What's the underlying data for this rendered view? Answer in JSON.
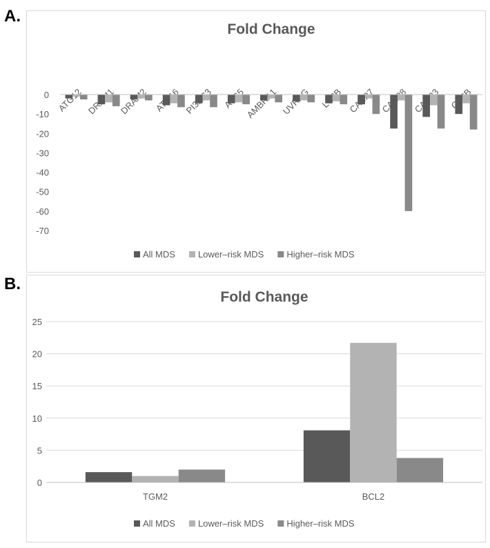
{
  "panels": [
    {
      "label": "A."
    },
    {
      "label": "B."
    }
  ],
  "chart_data": [
    {
      "type": "bar",
      "title": "Fold Change",
      "categories": [
        "ATG12",
        "DRAM1",
        "DRAM2",
        "ATG16",
        "PI3KC3",
        "ATG5",
        "AMBRA1",
        "UVRAG",
        "LC3B",
        "CASP7",
        "CASP8",
        "CASP3",
        "CTSB"
      ],
      "series": [
        {
          "name": "All MDS",
          "color": "#595959",
          "values": [
            -2,
            -5,
            -2.5,
            -5.5,
            -4.5,
            -4.5,
            -3,
            -3.5,
            -4.5,
            -5,
            -17.5,
            -11.5,
            -10
          ]
        },
        {
          "name": "Lower–risk MDS",
          "color": "#b3b3b3",
          "values": [
            -1,
            -4,
            -2,
            -4.5,
            -3,
            -4,
            -2,
            -3,
            -3.5,
            -2,
            -3,
            -5.5,
            -4.5
          ]
        },
        {
          "name": "Higher–risk MDS",
          "color": "#898989",
          "values": [
            -2.5,
            -6,
            -3,
            -6.5,
            -6.5,
            -5,
            -4,
            -4,
            -5,
            -10,
            -60,
            -17.5,
            -18
          ]
        }
      ],
      "ylim": [
        -70,
        0
      ],
      "yticks": [
        0,
        -10,
        -20,
        -30,
        -40,
        -50,
        -60,
        -70
      ],
      "grid": false,
      "legend": "bottom",
      "category_axis": "top-rotated"
    },
    {
      "type": "bar",
      "title": "Fold Change",
      "categories": [
        "TGM2",
        "BCL2"
      ],
      "series": [
        {
          "name": "All MDS",
          "color": "#595959",
          "values": [
            1.6,
            8.1
          ]
        },
        {
          "name": "Lower–risk MDS",
          "color": "#b3b3b3",
          "values": [
            1.0,
            21.7
          ]
        },
        {
          "name": "Higher–risk MDS",
          "color": "#898989",
          "values": [
            2.0,
            3.8
          ]
        }
      ],
      "ylim": [
        0,
        25
      ],
      "yticks": [
        0,
        5,
        10,
        15,
        20,
        25
      ],
      "grid": true,
      "legend": "bottom",
      "category_axis": "bottom"
    }
  ]
}
